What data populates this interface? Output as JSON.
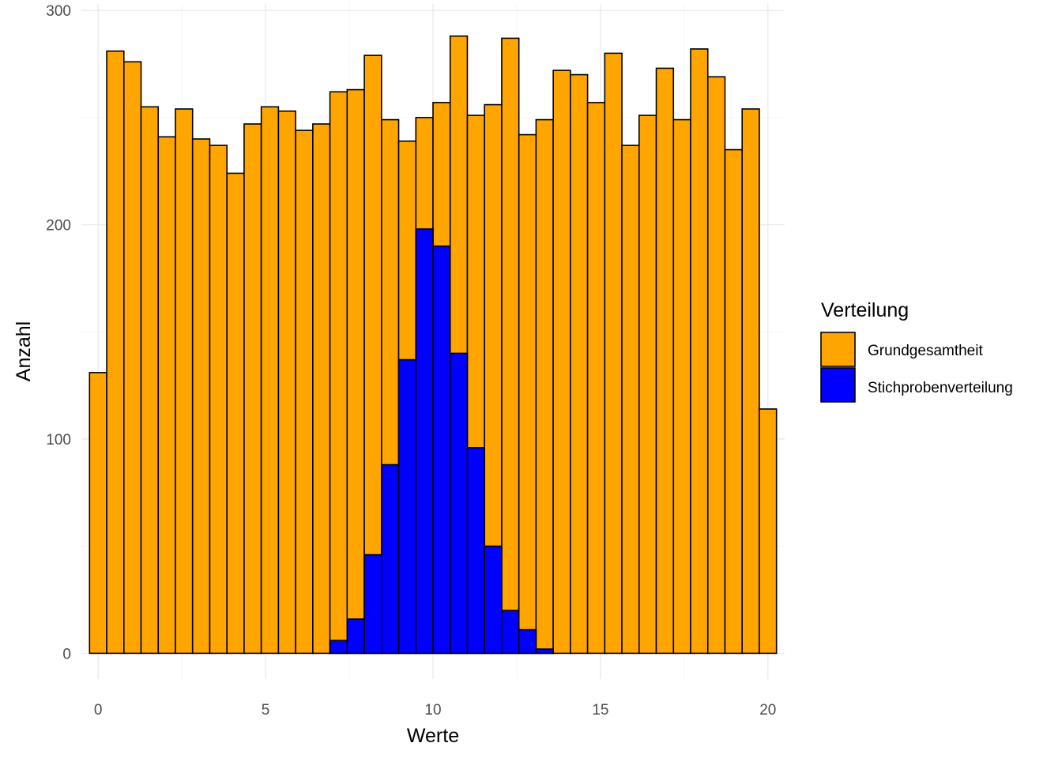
{
  "chart_data": {
    "type": "bar",
    "subtype": "overlaid-histogram",
    "xlabel": "Werte",
    "ylabel": "Anzahl",
    "xlim": [
      -0.5,
      20.5
    ],
    "ylim": [
      -12,
      303
    ],
    "x_ticks": [
      0,
      5,
      10,
      15,
      20
    ],
    "x_tick_labels": [
      "0",
      "5",
      "10",
      "15",
      "20"
    ],
    "y_ticks": [
      0,
      100,
      200,
      300
    ],
    "y_tick_labels": [
      "0",
      "100",
      "200",
      "300"
    ],
    "grid": true,
    "legend": {
      "title": "Verteilung",
      "position": "right",
      "entries": [
        "Grundgesamtheit",
        "Stichprobenverteilung"
      ]
    },
    "bin_width": 0.5128,
    "series": [
      {
        "name": "Grundgesamtheit",
        "color": "#FFA500",
        "bin_centers": [
          0.0,
          0.513,
          1.026,
          1.538,
          2.051,
          2.564,
          3.077,
          3.59,
          4.103,
          4.615,
          5.128,
          5.641,
          6.154,
          6.667,
          7.179,
          7.692,
          8.205,
          8.718,
          9.231,
          9.744,
          10.256,
          10.769,
          11.282,
          11.795,
          12.308,
          12.821,
          13.333,
          13.846,
          14.359,
          14.872,
          15.385,
          15.897,
          16.41,
          16.923,
          17.436,
          17.949,
          18.462,
          18.974,
          19.487,
          20.0
        ],
        "values": [
          131,
          281,
          276,
          255,
          241,
          254,
          240,
          237,
          224,
          247,
          255,
          253,
          244,
          247,
          262,
          263,
          279,
          249,
          239,
          250,
          257,
          288,
          251,
          256,
          287,
          242,
          249,
          272,
          270,
          257,
          280,
          237,
          251,
          273,
          249,
          282,
          269,
          235,
          254,
          114
        ]
      },
      {
        "name": "Stichprobenverteilung",
        "color": "#0000FF",
        "bin_centers": [
          7.179,
          7.692,
          8.205,
          8.718,
          9.231,
          9.744,
          10.256,
          10.769,
          11.282,
          11.795,
          12.308,
          12.821,
          13.333
        ],
        "values": [
          6,
          16,
          46,
          88,
          137,
          198,
          190,
          140,
          96,
          50,
          20,
          11,
          2
        ]
      }
    ]
  }
}
